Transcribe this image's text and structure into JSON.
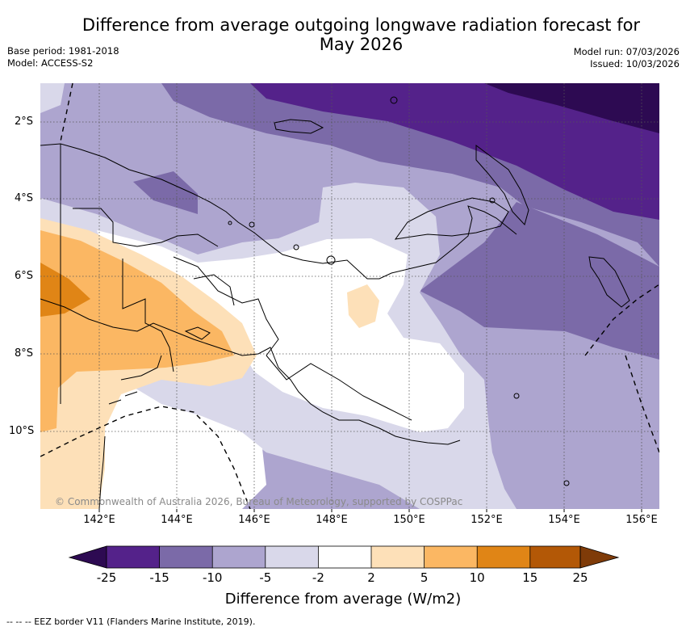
{
  "title": "Difference from average outgoing longwave radiation forecast for May 2026",
  "title_line1": "Difference from average outgoing longwave radiation forecast for",
  "title_line2": "May 2026",
  "meta": {
    "base_period": "Base period: 1981-2018",
    "model": "Model: ACCESS-S2",
    "model_run": "Model run: 07/03/2026",
    "issued": "Issued: 10/03/2026"
  },
  "axes": {
    "lat_labels": [
      "2°S",
      "4°S",
      "6°S",
      "8°S",
      "10°S"
    ],
    "lon_labels": [
      "142°E",
      "144°E",
      "146°E",
      "148°E",
      "150°E",
      "152°E",
      "154°E",
      "156°E"
    ]
  },
  "credit": "© Commonwealth of Australia 2026, Bureau of Meteorology, supported by COSPPac",
  "colorbar": {
    "title": "Difference from average (W/m2)",
    "labels": [
      "-25",
      "-15",
      "-10",
      "-5",
      "-2",
      "2",
      "5",
      "10",
      "15",
      "25"
    ],
    "colors": [
      "#2d0a52",
      "#54228a",
      "#7b6aa8",
      "#ada5cf",
      "#d9d8ea",
      "#ffffff",
      "#fde0b8",
      "#fbb763",
      "#e08516",
      "#b35806",
      "#7f3b08"
    ]
  },
  "footnote": "--  --  -- EEZ border V11 (Flanders Marine Institute, 2019)."
}
